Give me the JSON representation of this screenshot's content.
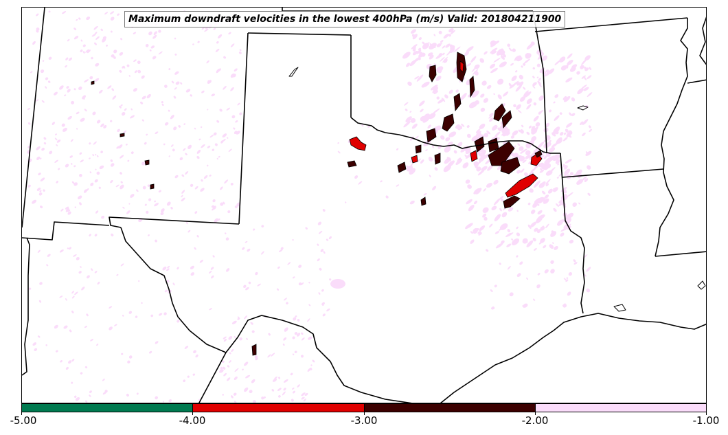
{
  "title": "Maximum downdraft velocities in the lowest 400hPa (m/s) Valid: 201804211900",
  "colorbar": {
    "segments": [
      {
        "range": "-5.00 to -4.00",
        "color": "#007a50"
      },
      {
        "range": "-4.00 to -3.00",
        "color": "#e00000"
      },
      {
        "range": "-3.00 to -2.00",
        "color": "#3c0000"
      },
      {
        "range": "-2.00 to -1.00",
        "color": "#fadcfa"
      }
    ],
    "tick_labels": [
      "-5.00",
      "-4.00",
      "-3.00",
      "-2.00",
      "-1.00"
    ]
  },
  "colors": {
    "boundary": "#000000",
    "light_pink": "#fadcfa",
    "red": "#e00000",
    "dark_red": "#3c0000"
  }
}
